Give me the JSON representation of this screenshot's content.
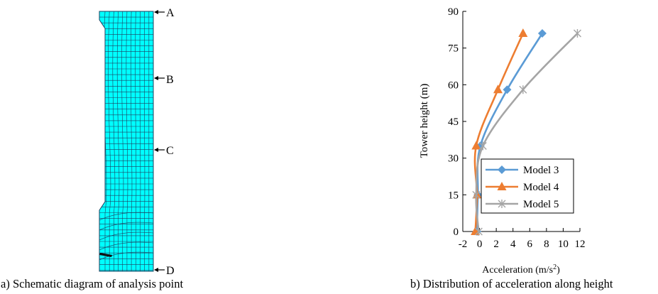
{
  "captions": {
    "a": "a) Schematic diagram of analysis point",
    "b": "b) Distribution of acceleration along height"
  },
  "points": [
    "A",
    "B",
    "C",
    "D"
  ],
  "colors": {
    "mesh_fill": "#00ffff",
    "mesh_line": "#1f3f5f",
    "model3": "#5b9bd5",
    "model4": "#ed7d31",
    "model5": "#a5a5a5"
  },
  "chart_data": {
    "type": "line",
    "title": "",
    "xlabel": "Acceleration (m/s²)",
    "xlabel_main": "Acceleration (m/s",
    "xlabel_sup": "2",
    "xlabel_end": ")",
    "ylabel": "Tower height  (m)",
    "xlim": [
      -2,
      12
    ],
    "ylim": [
      0,
      90
    ],
    "xticks": [
      -2,
      0,
      2,
      4,
      6,
      8,
      10,
      12
    ],
    "yticks": [
      0,
      15,
      30,
      45,
      60,
      75,
      90
    ],
    "grid": false,
    "legend_position": "center-right",
    "series": [
      {
        "name": "Model 3",
        "marker": "diamond",
        "x": [
          -0.3,
          -0.2,
          0.1,
          3.3,
          7.5
        ],
        "y": [
          0,
          15,
          35,
          58,
          81
        ]
      },
      {
        "name": "Model 4",
        "marker": "triangle",
        "x": [
          -0.5,
          -0.3,
          -0.4,
          2.2,
          5.2
        ],
        "y": [
          0,
          15,
          35,
          58,
          81
        ]
      },
      {
        "name": "Model 5",
        "marker": "asterisk",
        "x": [
          -0.1,
          -0.4,
          0.4,
          5.2,
          11.7
        ],
        "y": [
          0,
          15,
          35,
          58,
          81
        ]
      }
    ]
  }
}
